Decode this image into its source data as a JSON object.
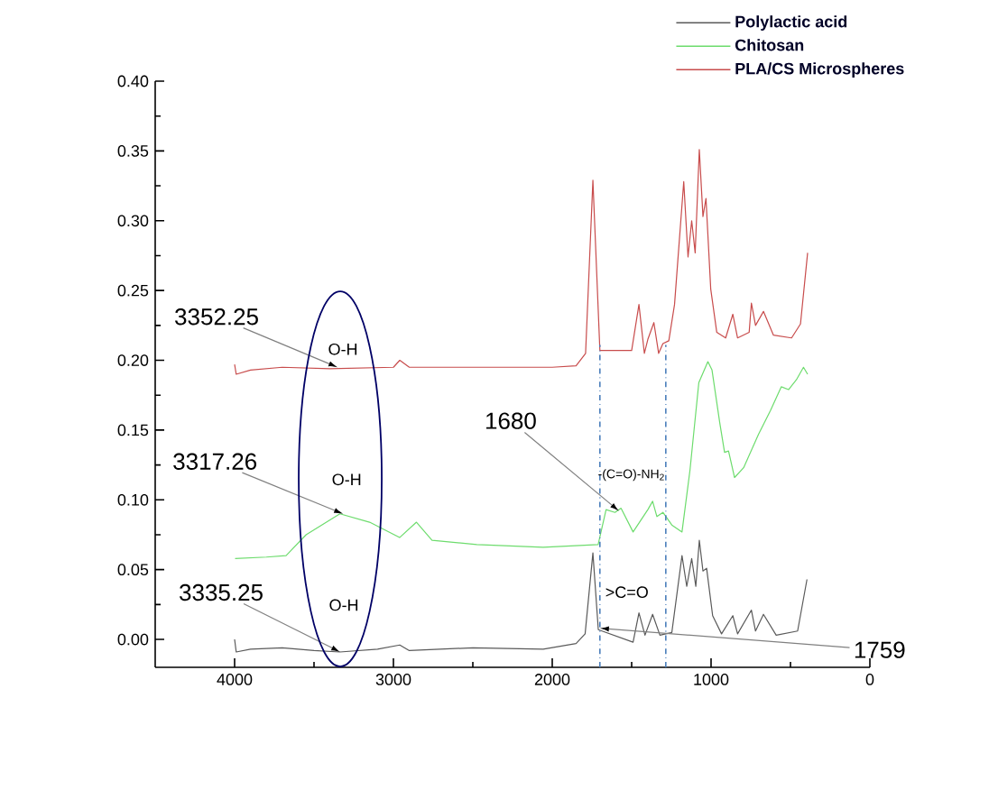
{
  "chart_data": {
    "type": "line",
    "xlim": [
      4500,
      0
    ],
    "xticks": [
      4000,
      3000,
      2000,
      1000,
      0
    ],
    "ylim": [
      -0.02,
      0.4
    ],
    "yticks": [
      {
        "value": 0,
        "label": "0.00"
      },
      {
        "value": 0.05,
        "label": "0.05"
      },
      {
        "value": 0.1,
        "label": "0.10"
      },
      {
        "value": 0.15,
        "label": "0.15"
      },
      {
        "value": 0.2,
        "label": "0.20"
      },
      {
        "value": 0.25,
        "label": "0.25"
      },
      {
        "value": 0.3,
        "label": "0.30"
      },
      {
        "value": 0.35,
        "label": "0.35"
      },
      {
        "value": 0.4,
        "label": "0.40"
      }
    ],
    "legend": "top right",
    "series": [
      {
        "name": "Polylactic acid",
        "color": "#5a5a5a",
        "x": [
          4000,
          3990,
          3900,
          3700,
          3500,
          3337,
          3100,
          2960,
          2900,
          2500,
          2057,
          1850,
          1793,
          1744,
          1710,
          1491,
          1454,
          1416,
          1368,
          1322,
          1247,
          1183,
          1153,
          1122,
          1096,
          1074,
          1051,
          1028,
          990,
          934,
          863,
          833,
          746,
          720,
          670,
          590,
          455,
          396
        ],
        "values": [
          0.0,
          -0.009,
          -0.007,
          -0.006,
          -0.008,
          -0.009,
          -0.007,
          -0.004,
          -0.008,
          -0.006,
          -0.007,
          -0.003,
          0.004,
          0.062,
          0.007,
          -0.002,
          0.019,
          0.003,
          0.018,
          0.003,
          0.005,
          0.06,
          0.038,
          0.058,
          0.038,
          0.071,
          0.049,
          0.051,
          0.017,
          0.004,
          0.017,
          0.004,
          0.021,
          0.006,
          0.018,
          0.003,
          0.006,
          0.043
        ]
      },
      {
        "name": "Chitosan",
        "color": "#6ddc6d",
        "x": [
          3997,
          3800,
          3676,
          3550,
          3337,
          3150,
          2961,
          2855,
          2757,
          2475,
          2057,
          1711,
          1661,
          1605,
          1567,
          1491,
          1398,
          1368,
          1341,
          1303,
          1247,
          1183,
          1133,
          1077,
          1020,
          994,
          945,
          915,
          890,
          852,
          795,
          701,
          626,
          558,
          512,
          463,
          418,
          392
        ],
        "values": [
          0.058,
          0.059,
          0.06,
          0.075,
          0.09,
          0.084,
          0.073,
          0.084,
          0.071,
          0.068,
          0.066,
          0.068,
          0.093,
          0.091,
          0.094,
          0.077,
          0.093,
          0.099,
          0.088,
          0.091,
          0.082,
          0.077,
          0.121,
          0.184,
          0.199,
          0.193,
          0.155,
          0.134,
          0.135,
          0.116,
          0.123,
          0.147,
          0.164,
          0.181,
          0.179,
          0.186,
          0.195,
          0.19
        ]
      },
      {
        "name": "PLA/CS Microspheres",
        "color": "#c84c4c",
        "x": [
          4000,
          3990,
          3900,
          3700,
          3400,
          3000,
          2960,
          2900,
          2500,
          2000,
          1850,
          1790,
          1744,
          1700,
          1500,
          1454,
          1420,
          1398,
          1360,
          1330,
          1303,
          1266,
          1230,
          1172,
          1145,
          1122,
          1100,
          1074,
          1051,
          1032,
          1002,
          964,
          908,
          863,
          833,
          760,
          746,
          720,
          670,
          607,
          493,
          437,
          392
        ],
        "values": [
          0.197,
          0.19,
          0.193,
          0.195,
          0.194,
          0.195,
          0.2,
          0.195,
          0.195,
          0.195,
          0.196,
          0.205,
          0.329,
          0.207,
          0.207,
          0.24,
          0.205,
          0.215,
          0.227,
          0.205,
          0.212,
          0.214,
          0.24,
          0.328,
          0.274,
          0.3,
          0.277,
          0.351,
          0.303,
          0.316,
          0.251,
          0.22,
          0.216,
          0.233,
          0.216,
          0.22,
          0.241,
          0.225,
          0.235,
          0.218,
          0.216,
          0.226,
          0.277
        ]
      }
    ],
    "ref_lines": [
      {
        "axis": "x",
        "value": 1700,
        "color": "#4a7ebb",
        "line_style": "dashed"
      },
      {
        "axis": "x",
        "value": 1285,
        "color": "#4a7ebb",
        "line_style": "dashed"
      }
    ],
    "annotations": [
      {
        "text": "3352.25",
        "x": 3352,
        "y": 0.195
      },
      {
        "text": "O-H",
        "x": 3352,
        "y": 0.195
      },
      {
        "text": "3317.26",
        "x": 3317,
        "y": 0.09
      },
      {
        "text": "O-H",
        "x": 3317,
        "y": 0.09
      },
      {
        "text": "3335.25",
        "x": 3335,
        "y": -0.009
      },
      {
        "text": "O-H",
        "x": 3335,
        "y": -0.009
      },
      {
        "text": "1680",
        "x": 1580,
        "y": 0.092
      },
      {
        "text": "-(C=O)-NH$_{2}$",
        "x": 1580,
        "y": 0.092
      },
      {
        "text": ">C=O",
        "x": 1700,
        "y": 0.008
      },
      {
        "text": "1759",
        "x": 1700,
        "y": 0.008
      }
    ]
  }
}
